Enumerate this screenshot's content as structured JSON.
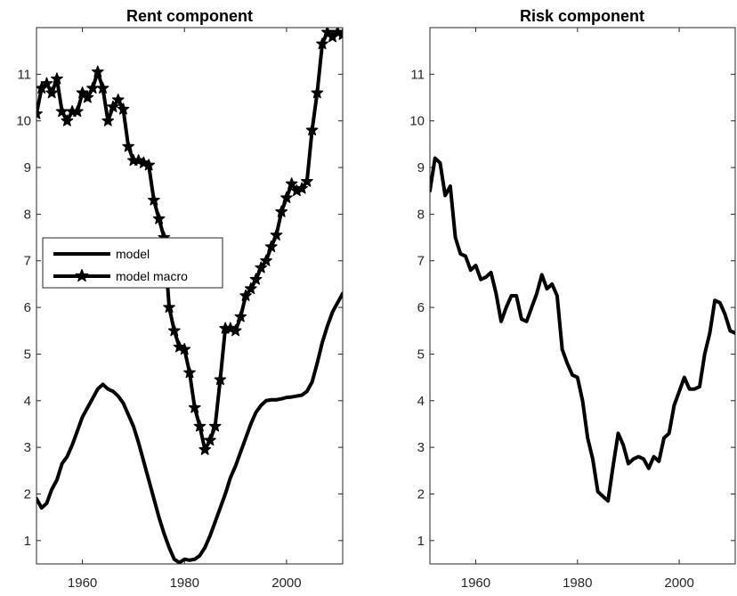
{
  "chart_data": [
    {
      "type": "line",
      "title": "Rent component",
      "xlabel": "",
      "ylabel": "",
      "xlim": [
        1951,
        2011
      ],
      "ylim": [
        0.5,
        12
      ],
      "xticks": [
        1960,
        1980,
        2000
      ],
      "yticks": [
        1,
        2,
        3,
        4,
        5,
        6,
        7,
        8,
        9,
        10,
        11
      ],
      "legend": "left-middle",
      "line_color": "#000000",
      "series": [
        {
          "name": "model",
          "marker": "none",
          "x": [
            1951,
            1952,
            1953,
            1954,
            1955,
            1956,
            1957,
            1958,
            1959,
            1960,
            1961,
            1962,
            1963,
            1964,
            1965,
            1966,
            1967,
            1968,
            1969,
            1970,
            1971,
            1972,
            1973,
            1974,
            1975,
            1976,
            1977,
            1978,
            1979,
            1980,
            1981,
            1982,
            1983,
            1984,
            1985,
            1986,
            1987,
            1988,
            1989,
            1990,
            1991,
            1992,
            1993,
            1994,
            1995,
            1996,
            1997,
            1998,
            1999,
            2000,
            2001,
            2002,
            2003,
            2004,
            2005,
            2006,
            2007,
            2008,
            2009,
            2010,
            2011
          ],
          "y": [
            1.9,
            1.7,
            1.8,
            2.1,
            2.3,
            2.65,
            2.8,
            3.05,
            3.35,
            3.65,
            3.85,
            4.05,
            4.25,
            4.35,
            4.25,
            4.2,
            4.1,
            3.95,
            3.7,
            3.45,
            3.1,
            2.7,
            2.3,
            1.9,
            1.5,
            1.15,
            0.85,
            0.6,
            0.53,
            0.6,
            0.58,
            0.6,
            0.68,
            0.85,
            1.1,
            1.4,
            1.7,
            2.0,
            2.35,
            2.6,
            2.9,
            3.2,
            3.5,
            3.75,
            3.9,
            4.0,
            4.02,
            4.02,
            4.04,
            4.07,
            4.08,
            4.1,
            4.12,
            4.2,
            4.4,
            4.8,
            5.25,
            5.6,
            5.9,
            6.1,
            6.3
          ]
        },
        {
          "name": "model macro",
          "marker": "star",
          "x": [
            1951,
            1952,
            1953,
            1954,
            1955,
            1956,
            1957,
            1958,
            1959,
            1960,
            1961,
            1962,
            1963,
            1964,
            1965,
            1966,
            1967,
            1968,
            1969,
            1970,
            1971,
            1972,
            1973,
            1974,
            1975,
            1976,
            1977,
            1978,
            1979,
            1980,
            1981,
            1982,
            1983,
            1984,
            1985,
            1986,
            1987,
            1988,
            1989,
            1990,
            1991,
            1992,
            1993,
            1994,
            1995,
            1996,
            1997,
            1998,
            1999,
            2000,
            2001,
            2002,
            2003,
            2004,
            2005,
            2006,
            2007,
            2008,
            2009,
            2010,
            2011
          ],
          "y": [
            10.15,
            10.7,
            10.8,
            10.6,
            10.9,
            10.2,
            10.0,
            10.2,
            10.2,
            10.6,
            10.5,
            10.7,
            11.05,
            10.7,
            10.0,
            10.3,
            10.45,
            10.25,
            9.45,
            9.15,
            9.15,
            9.1,
            9.05,
            8.3,
            7.9,
            7.5,
            6.0,
            5.5,
            5.15,
            5.1,
            4.6,
            3.85,
            3.45,
            2.95,
            3.15,
            3.45,
            4.45,
            5.55,
            5.55,
            5.5,
            5.8,
            6.25,
            6.4,
            6.6,
            6.85,
            7.0,
            7.3,
            7.55,
            8.05,
            8.35,
            8.65,
            8.5,
            8.55,
            8.7,
            9.8,
            10.6,
            11.65,
            11.9,
            11.8,
            11.9,
            11.85
          ]
        }
      ]
    },
    {
      "type": "line",
      "title": "Risk component",
      "xlabel": "",
      "ylabel": "",
      "xlim": [
        1951,
        2011
      ],
      "ylim": [
        0.5,
        12
      ],
      "xticks": [
        1960,
        1980,
        2000
      ],
      "yticks": [
        1,
        2,
        3,
        4,
        5,
        6,
        7,
        8,
        9,
        10,
        11
      ],
      "line_color": "#000000",
      "series": [
        {
          "marker": "none",
          "x": [
            1951,
            1952,
            1953,
            1954,
            1955,
            1956,
            1957,
            1958,
            1959,
            1960,
            1961,
            1962,
            1963,
            1964,
            1965,
            1966,
            1967,
            1968,
            1969,
            1970,
            1971,
            1972,
            1973,
            1974,
            1975,
            1976,
            1977,
            1978,
            1979,
            1980,
            1981,
            1982,
            1983,
            1984,
            1985,
            1986,
            1987,
            1988,
            1989,
            1990,
            1991,
            1992,
            1993,
            1994,
            1995,
            1996,
            1997,
            1998,
            1999,
            2000,
            2001,
            2002,
            2003,
            2004,
            2005,
            2006,
            2007,
            2008,
            2009,
            2010,
            2011
          ],
          "y": [
            8.5,
            9.2,
            9.1,
            8.4,
            8.6,
            7.5,
            7.15,
            7.1,
            6.8,
            6.9,
            6.6,
            6.65,
            6.75,
            6.3,
            5.7,
            6.0,
            6.25,
            6.25,
            5.75,
            5.7,
            6.0,
            6.3,
            6.7,
            6.4,
            6.5,
            6.25,
            5.1,
            4.8,
            4.55,
            4.5,
            4.0,
            3.2,
            2.75,
            2.05,
            1.95,
            1.85,
            2.6,
            3.3,
            3.05,
            2.65,
            2.75,
            2.8,
            2.75,
            2.55,
            2.8,
            2.7,
            3.2,
            3.3,
            3.9,
            4.2,
            4.5,
            4.25,
            4.25,
            4.3,
            5.0,
            5.45,
            6.15,
            6.1,
            5.85,
            5.5,
            5.45
          ]
        }
      ]
    }
  ]
}
